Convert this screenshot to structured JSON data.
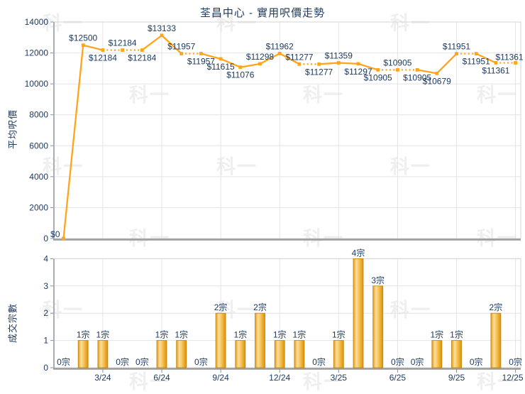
{
  "title": "荃昌中心 - 實用呎價走勢",
  "watermark": {
    "text": "科一"
  },
  "colors": {
    "accent_orange": "#FFA41C",
    "bar_highlight": "#FCDE9C",
    "bar_mid": "#F8C963",
    "bar_dark": "#E19A1B",
    "bar_edge": "#DE9102",
    "bar_border": "#C08408",
    "text_navy": "#1E3A60",
    "grid": "#E4E4E4",
    "plot_border": "#D4D4D4",
    "axis_left": "#A8AEB6",
    "axis_bottom": "#9B9B9B",
    "tick": "#8A9099"
  },
  "chart_data": [
    {
      "type": "line",
      "title": "荃昌中心 - 實用呎價走勢",
      "ylabel": "平均呎價",
      "ylim": [
        0,
        14000
      ],
      "ytick_labels": [
        "0",
        "2000",
        "4000",
        "6000",
        "8000",
        "10000",
        "12000",
        "14000"
      ],
      "grid": "on",
      "x": [
        "1/24",
        "2/24",
        "3/24",
        "4/24",
        "5/24",
        "6/24",
        "7/24",
        "8/24",
        "9/24",
        "10/24",
        "11/24",
        "12/24",
        "1/25",
        "2/25",
        "3/25",
        "4/25",
        "5/25",
        "6/25",
        "7/25",
        "8/25",
        "9/25",
        "10/25",
        "11/25",
        "12/25"
      ],
      "xtick_positions": [
        2,
        5,
        8,
        11,
        14,
        17,
        20,
        23
      ],
      "xtick_labels": [
        "3/24",
        "6/24",
        "9/24",
        "12/24",
        "3/25",
        "6/25",
        "9/25",
        "12/25"
      ],
      "values": [
        0,
        12500,
        12184,
        12184,
        12184,
        13133,
        11957,
        11957,
        11615,
        11076,
        11298,
        11962,
        11277,
        11277,
        11359,
        11297,
        10905,
        10905,
        10905,
        10679,
        11951,
        11951,
        11361,
        11361
      ],
      "point_labels": [
        "$0",
        "$12500",
        "$12184",
        "$12184",
        "$12184",
        "$13133",
        "$11957",
        "$11957",
        "$11615",
        "$11076",
        "$11298",
        "$11962",
        "$11277",
        "$11277",
        "$11359",
        "$11297",
        "$10905",
        "$10905",
        "$10905",
        "$10679",
        "$11951",
        "$11951",
        "$11361",
        "$11361"
      ],
      "label_pos": [
        "left",
        "above",
        "below",
        "above",
        "below",
        "above",
        "above",
        "below",
        "below",
        "below",
        "above",
        "above",
        "above",
        "below",
        "above",
        "below",
        "below",
        "above",
        "below",
        "below",
        "above",
        "below",
        "below",
        "above-right"
      ],
      "note": "segments into zero-transaction months are dotted (carried-forward price)"
    },
    {
      "type": "bar",
      "ylabel": "成交宗數",
      "ylim": [
        0,
        4
      ],
      "ytick_labels": [
        "0",
        "1",
        "2",
        "3",
        "4"
      ],
      "grid": "on",
      "x": [
        "1/24",
        "2/24",
        "3/24",
        "4/24",
        "5/24",
        "6/24",
        "7/24",
        "8/24",
        "9/24",
        "10/24",
        "11/24",
        "12/24",
        "1/25",
        "2/25",
        "3/25",
        "4/25",
        "5/25",
        "6/25",
        "7/25",
        "8/25",
        "9/25",
        "10/25",
        "11/25",
        "12/25"
      ],
      "xtick_positions": [
        2,
        5,
        8,
        11,
        14,
        17,
        20,
        23
      ],
      "xtick_labels": [
        "3/24",
        "6/24",
        "9/24",
        "12/24",
        "3/25",
        "6/25",
        "9/25",
        "12/25"
      ],
      "values": [
        0,
        1,
        1,
        0,
        0,
        1,
        1,
        0,
        2,
        1,
        2,
        1,
        1,
        0,
        1,
        4,
        3,
        0,
        0,
        1,
        1,
        0,
        2,
        0
      ],
      "bar_labels": [
        "0宗",
        "1宗",
        "1宗",
        "0宗",
        "0宗",
        "1宗",
        "1宗",
        "0宗",
        "2宗",
        "1宗",
        "2宗",
        "1宗",
        "1宗",
        "0宗",
        "1宗",
        "4宗",
        "3宗",
        "0宗",
        "0宗",
        "1宗",
        "1宗",
        "0宗",
        "2宗",
        "0宗"
      ]
    }
  ]
}
